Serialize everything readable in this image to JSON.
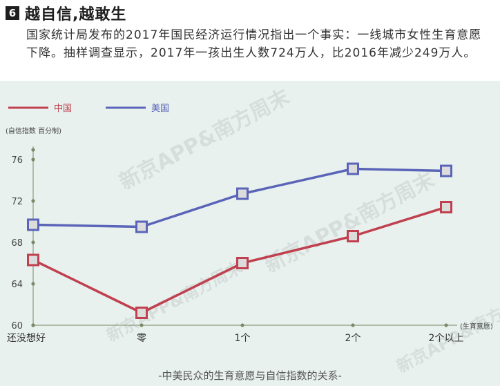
{
  "header": {
    "badge": "6",
    "title": "越自信,越敢生"
  },
  "intro": "国家统计局发布的2017年国民经济运行情况指出一个事实：一线城市女性生育意愿下降。抽样调查显示，2017年一孩出生人数724万人，比2016年减少249万人。",
  "watermark": "新京APP&南方周末",
  "caption": "-中美民众的生育意愿与自信指数的关系-",
  "colors": {
    "china": "#c0404f",
    "usa": "#5a64b8",
    "axis": "#8a9b80",
    "panel": "#e8f1ee"
  },
  "chart_data": {
    "type": "line",
    "categories": [
      "还没想好",
      "零",
      "1个",
      "2个",
      "2个以上"
    ],
    "series": [
      {
        "name": "中国",
        "values": [
          66.3,
          61.2,
          66.0,
          68.6,
          71.4
        ]
      },
      {
        "name": "美国",
        "values": [
          69.7,
          69.5,
          72.7,
          75.1,
          74.9
        ]
      }
    ],
    "ylabel": "(自信指数 百分制)",
    "xlabel": "(生育意愿)",
    "yticks": [
      60,
      64,
      68,
      72,
      76
    ],
    "ylim": [
      60,
      78
    ],
    "legend": "top-left",
    "grid": false,
    "marker": "square"
  }
}
